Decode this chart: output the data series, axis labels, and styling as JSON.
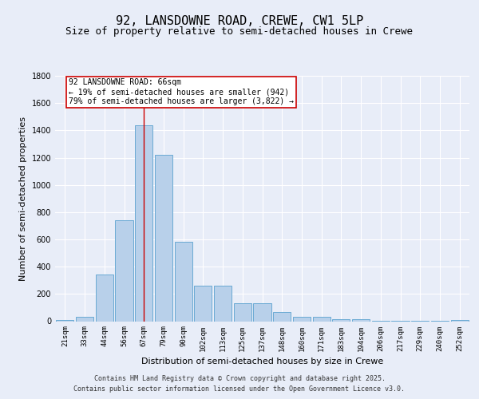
{
  "title1": "92, LANSDOWNE ROAD, CREWE, CW1 5LP",
  "title2": "Size of property relative to semi-detached houses in Crewe",
  "xlabel": "Distribution of semi-detached houses by size in Crewe",
  "ylabel": "Number of semi-detached properties",
  "categories": [
    "21sqm",
    "33sqm",
    "44sqm",
    "56sqm",
    "67sqm",
    "79sqm",
    "90sqm",
    "102sqm",
    "113sqm",
    "125sqm",
    "137sqm",
    "148sqm",
    "160sqm",
    "171sqm",
    "183sqm",
    "194sqm",
    "206sqm",
    "217sqm",
    "229sqm",
    "240sqm",
    "252sqm"
  ],
  "values": [
    10,
    30,
    340,
    740,
    1440,
    1220,
    580,
    260,
    260,
    130,
    130,
    65,
    30,
    30,
    15,
    15,
    5,
    5,
    3,
    3,
    10
  ],
  "bar_color": "#b8d0ea",
  "bar_edge_color": "#6aaad4",
  "vline_x": 4,
  "vline_color": "#cc0000",
  "annotation_text": "92 LANSDOWNE ROAD: 66sqm\n← 19% of semi-detached houses are smaller (942)\n79% of semi-detached houses are larger (3,822) →",
  "annotation_box_color": "#ffffff",
  "annotation_box_edge": "#cc0000",
  "ylim": [
    0,
    1800
  ],
  "yticks": [
    0,
    200,
    400,
    600,
    800,
    1000,
    1200,
    1400,
    1600,
    1800
  ],
  "bg_color": "#e8edf8",
  "plot_bg_color": "#e8edf8",
  "footer1": "Contains HM Land Registry data © Crown copyright and database right 2025.",
  "footer2": "Contains public sector information licensed under the Open Government Licence v3.0.",
  "title1_fontsize": 11,
  "title2_fontsize": 9,
  "tick_fontsize": 6.5,
  "ylabel_fontsize": 8,
  "xlabel_fontsize": 8,
  "footer_fontsize": 6,
  "ann_fontsize": 7
}
